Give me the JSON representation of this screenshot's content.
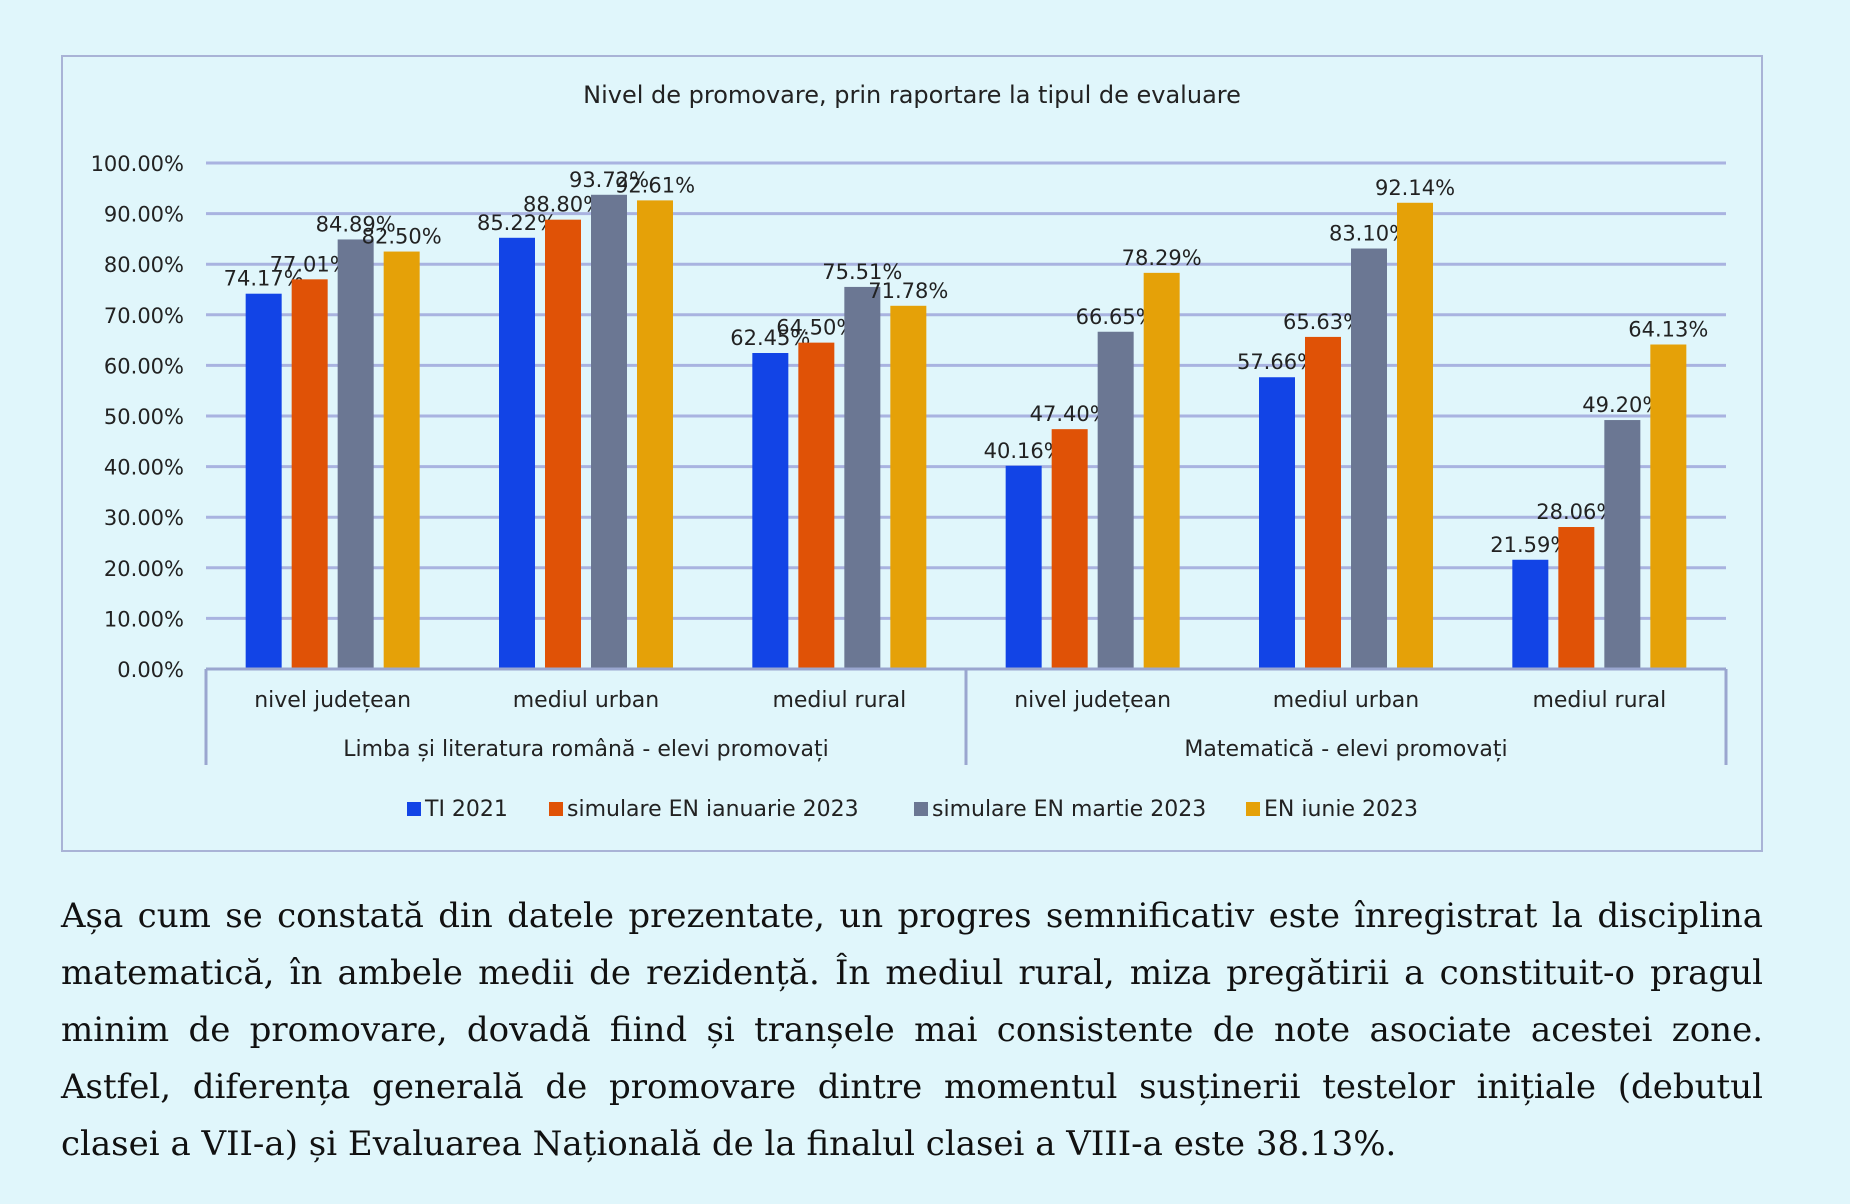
{
  "chart_data": {
    "type": "bar",
    "title": "Nivel de promovare, prin raportare la tipul de evaluare",
    "ylim": [
      0,
      100
    ],
    "y_ticks": [
      "0.00%",
      "10.00%",
      "20.00%",
      "30.00%",
      "40.00%",
      "50.00%",
      "60.00%",
      "70.00%",
      "80.00%",
      "90.00%",
      "100.00%"
    ],
    "grid": true,
    "legend_position": "bottom",
    "groups": [
      {
        "label": "Limba și literatura română - elevi promovați",
        "categories": [
          "nivel județean",
          "mediul urban",
          "mediul rural"
        ]
      },
      {
        "label": "Matematică - elevi promovați",
        "categories": [
          "nivel județean",
          "mediul urban",
          "mediul rural"
        ]
      }
    ],
    "categories": [
      "nivel județean",
      "mediul urban",
      "mediul rural",
      "nivel județean",
      "mediul urban",
      "mediul rural"
    ],
    "series": [
      {
        "name": "TI 2021",
        "color": "#1244e6",
        "values": [
          74.17,
          85.22,
          62.45,
          40.16,
          57.66,
          21.59
        ],
        "labels": [
          "74.17%",
          "85.22%",
          "62.45%",
          "40.16%",
          "57.66%",
          "21.59%"
        ]
      },
      {
        "name": "simulare EN ianuarie 2023",
        "color": "#e05206",
        "values": [
          77.01,
          88.8,
          64.5,
          47.4,
          65.63,
          28.06
        ],
        "labels": [
          "77.01%",
          "88.80%",
          "64.50%",
          "47.40%",
          "65.63%",
          "28.06%"
        ]
      },
      {
        "name": "simulare EN martie 2023",
        "color": "#6b7793",
        "values": [
          84.89,
          93.72,
          75.51,
          66.65,
          83.1,
          49.2
        ],
        "labels": [
          "84.89%",
          "93.72%",
          "75.51%",
          "66.65%",
          "83.10%",
          "49.20%"
        ]
      },
      {
        "name": "EN iunie 2023",
        "color": "#e5a108",
        "values": [
          82.5,
          92.61,
          71.78,
          78.29,
          92.14,
          64.13
        ],
        "labels": [
          "82.50%",
          "92.61%",
          "71.78%",
          "78.29%",
          "92.14%",
          "64.13%"
        ]
      }
    ]
  },
  "paragraph": "Așa cum se constată din datele prezentate, un progres semnificativ este înregistrat la disciplina matematică, în ambele medii de rezidență. În mediul rural, miza pregătirii a constituit-o pragul minim de promovare, dovadă fiind și tranșele mai consistente de note asociate acestei zone. Astfel, diferența generală de promovare dintre momentul susținerii testelor inițiale (debutul clasei a VII-a) și Evaluarea Națională de la finalul clasei a VIII-a este 38.13%."
}
